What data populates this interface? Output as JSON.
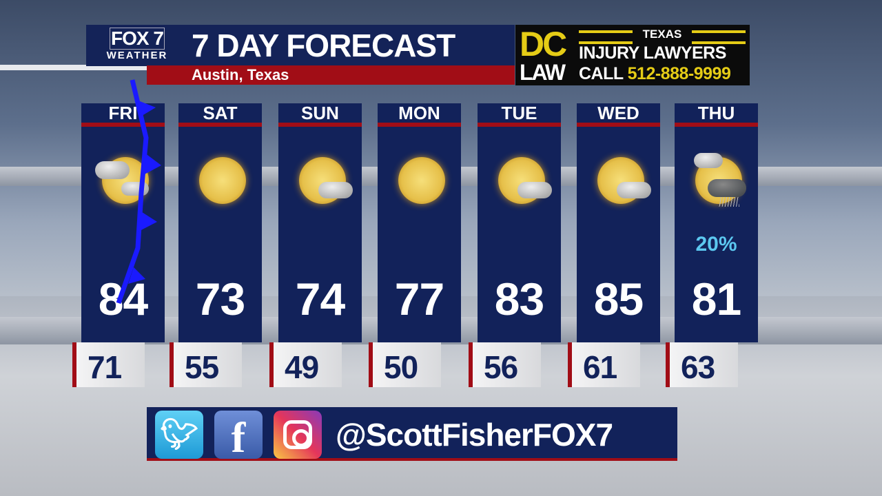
{
  "header": {
    "logo_main": "FOX 7",
    "logo_sub": "WEATHER",
    "title": "7 DAY FORECAST",
    "location": "Austin, Texas"
  },
  "ad": {
    "brand_top": "DC",
    "brand_bottom": "LAW",
    "state": "TEXAS",
    "tagline": "INJURY LAWYERS",
    "call_label": "CALL",
    "phone": "512-888-9999"
  },
  "forecast": [
    {
      "day": "FRI",
      "high": "84",
      "low": "71",
      "icon": "partly-sunny-clouds-icon",
      "precip": ""
    },
    {
      "day": "SAT",
      "high": "73",
      "low": "55",
      "icon": "sunny-icon",
      "precip": ""
    },
    {
      "day": "SUN",
      "high": "74",
      "low": "49",
      "icon": "mostly-sunny-icon",
      "precip": ""
    },
    {
      "day": "MON",
      "high": "77",
      "low": "50",
      "icon": "sunny-icon",
      "precip": ""
    },
    {
      "day": "TUE",
      "high": "83",
      "low": "56",
      "icon": "mostly-sunny-icon",
      "precip": ""
    },
    {
      "day": "WED",
      "high": "85",
      "low": "61",
      "icon": "mostly-sunny-icon",
      "precip": ""
    },
    {
      "day": "THU",
      "high": "81",
      "low": "63",
      "icon": "sun-clouds-showers-icon",
      "precip": "20%"
    }
  ],
  "map_overlay": {
    "feature": "cold-front-icon",
    "color": "#1a1aff"
  },
  "social": {
    "icons": [
      "twitter-icon",
      "facebook-icon",
      "instagram-icon"
    ],
    "facebook_glyph": "f",
    "handle": "@ScottFisherFOX7"
  },
  "colors": {
    "navy": "#12225a",
    "red": "#a10d16",
    "ad_yellow": "#e5cc16",
    "precip": "#5cc8f0"
  }
}
